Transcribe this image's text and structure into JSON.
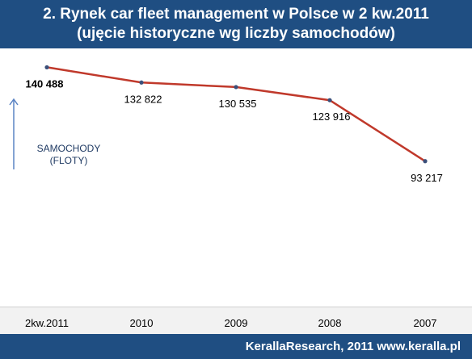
{
  "header": {
    "title_line1": "2. Rynek car fleet management w Polsce w 2 kw.2011",
    "title_line2": "(ujęcie historyczne wg liczby samochodów)"
  },
  "footer": {
    "text": "KerallaResearch, 2011 www.keralla.pl"
  },
  "colors": {
    "header_bg": "#1f4e82",
    "line": "#c0392b",
    "marker": "#3a4f7a",
    "axis_band": "#f2f2f2"
  },
  "chart_data": {
    "type": "line",
    "title": "2. Rynek car fleet management w Polsce w 2 kw.2011",
    "subtitle": "(ujęcie historyczne wg liczby samochodów)",
    "ylabel_lines": [
      "SAMOCHODY",
      "(FLOTY)"
    ],
    "xlabel": "",
    "categories": [
      "2kw.2011",
      "2010",
      "2009",
      "2008",
      "2007"
    ],
    "values": [
      140488,
      132822,
      130535,
      123916,
      93217
    ],
    "value_labels": [
      "140 488",
      "132 822",
      "130 535",
      "123 916",
      "93 217"
    ],
    "ylim": [
      20000,
      150000
    ],
    "grid": false,
    "legend": "none"
  }
}
